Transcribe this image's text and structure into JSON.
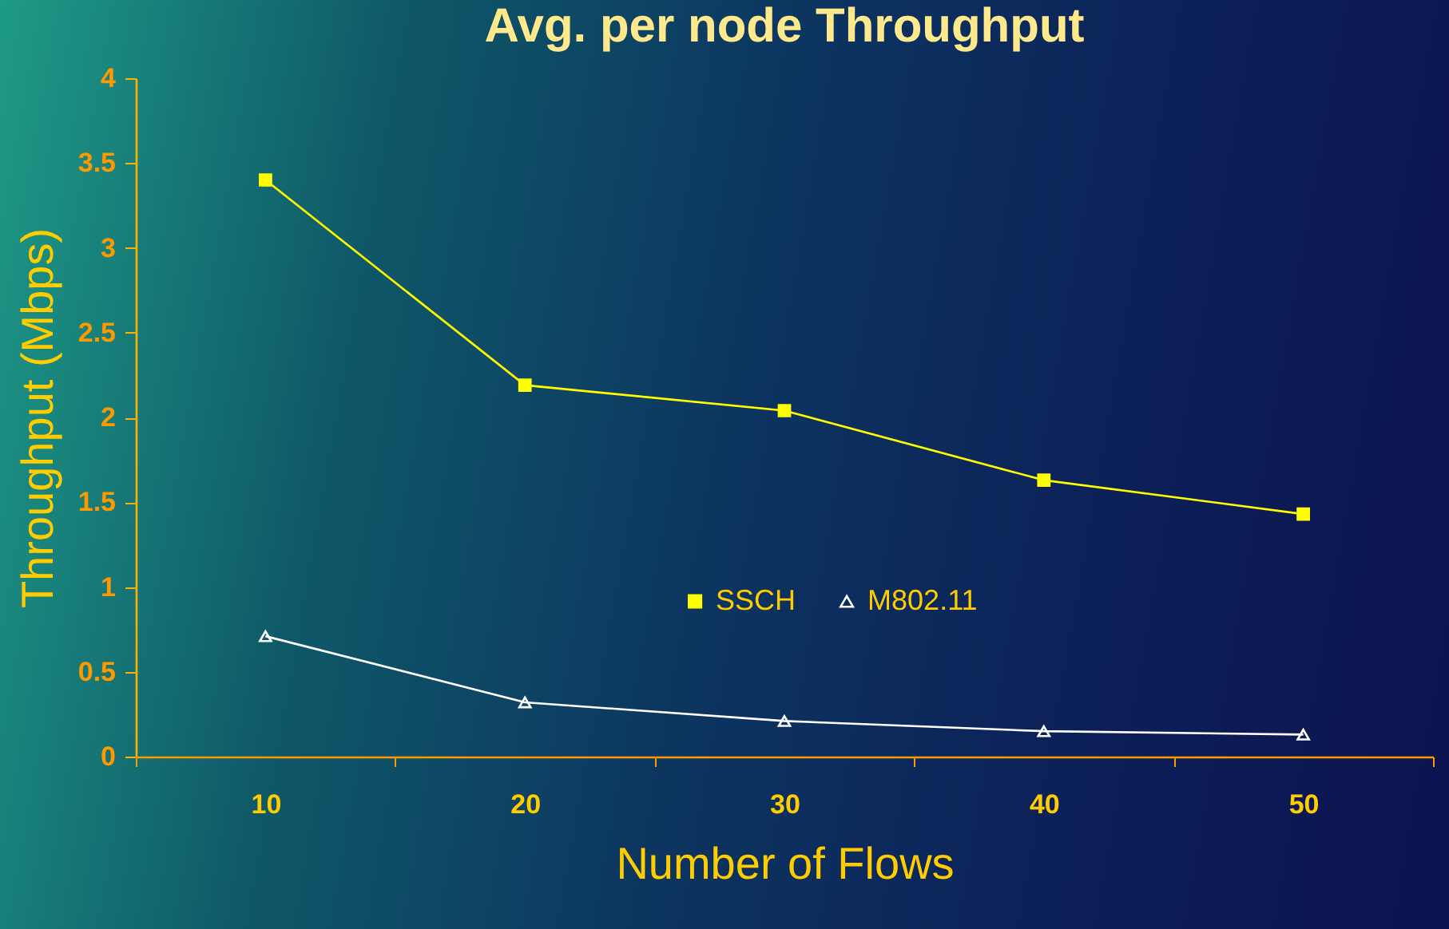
{
  "chart_data": {
    "type": "line",
    "title": "Avg. per node Throughput",
    "xlabel": "Number of Flows",
    "ylabel": "Throughput (Mbps)",
    "categories": [
      "10",
      "20",
      "30",
      "40",
      "50"
    ],
    "series": [
      {
        "name": "SSCH",
        "color": "#ffff00",
        "marker": "square",
        "values": [
          3.4,
          2.19,
          2.04,
          1.63,
          1.43
        ]
      },
      {
        "name": "M802.11",
        "color": "#ffffff",
        "marker": "triangle",
        "values": [
          0.71,
          0.32,
          0.21,
          0.15,
          0.13
        ]
      }
    ],
    "ylim": [
      0,
      4
    ],
    "yticks": [
      0,
      0.5,
      1,
      1.5,
      2,
      2.5,
      3,
      3.5,
      4
    ],
    "legend": "center",
    "line_style": "solid"
  }
}
